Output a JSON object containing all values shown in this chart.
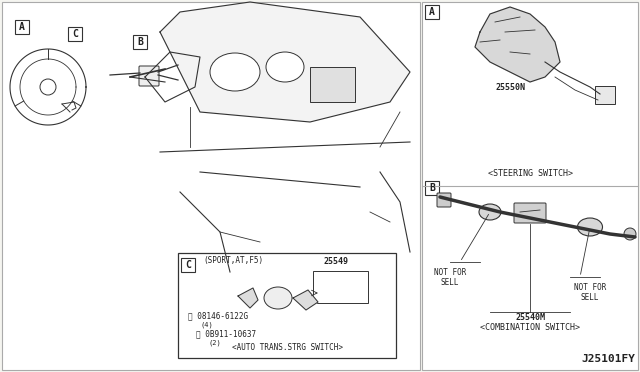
{
  "bg_color": "#f5f5f0",
  "border_color": "#aaaaaa",
  "line_color": "#333333",
  "text_color": "#222222",
  "title_text": "J25101FY",
  "panel_A_label": "A",
  "panel_B_label": "B",
  "panel_C_label": "C",
  "part_25550N": "25550N",
  "part_25540M": "25540M",
  "part_25549": "25549",
  "label_steering": "<STEERING SWITCH>",
  "label_combination": "<COMBINATION SWITCH>",
  "label_auto_trans": "<AUTO TRANS.STRG SWITCH>",
  "label_sport": "(SPORT,AT,F5)",
  "label_not_for_sell_1": "NOT FOR\nSELL",
  "label_not_for_sell_2": "NOT FOR\nSELL",
  "bolt_R": "08146-6122G",
  "bolt_R_qty": "(4)",
  "bolt_N": "0B911-10637",
  "bolt_N_qty": "(2)",
  "fig_width": 6.4,
  "fig_height": 3.72,
  "dpi": 100
}
